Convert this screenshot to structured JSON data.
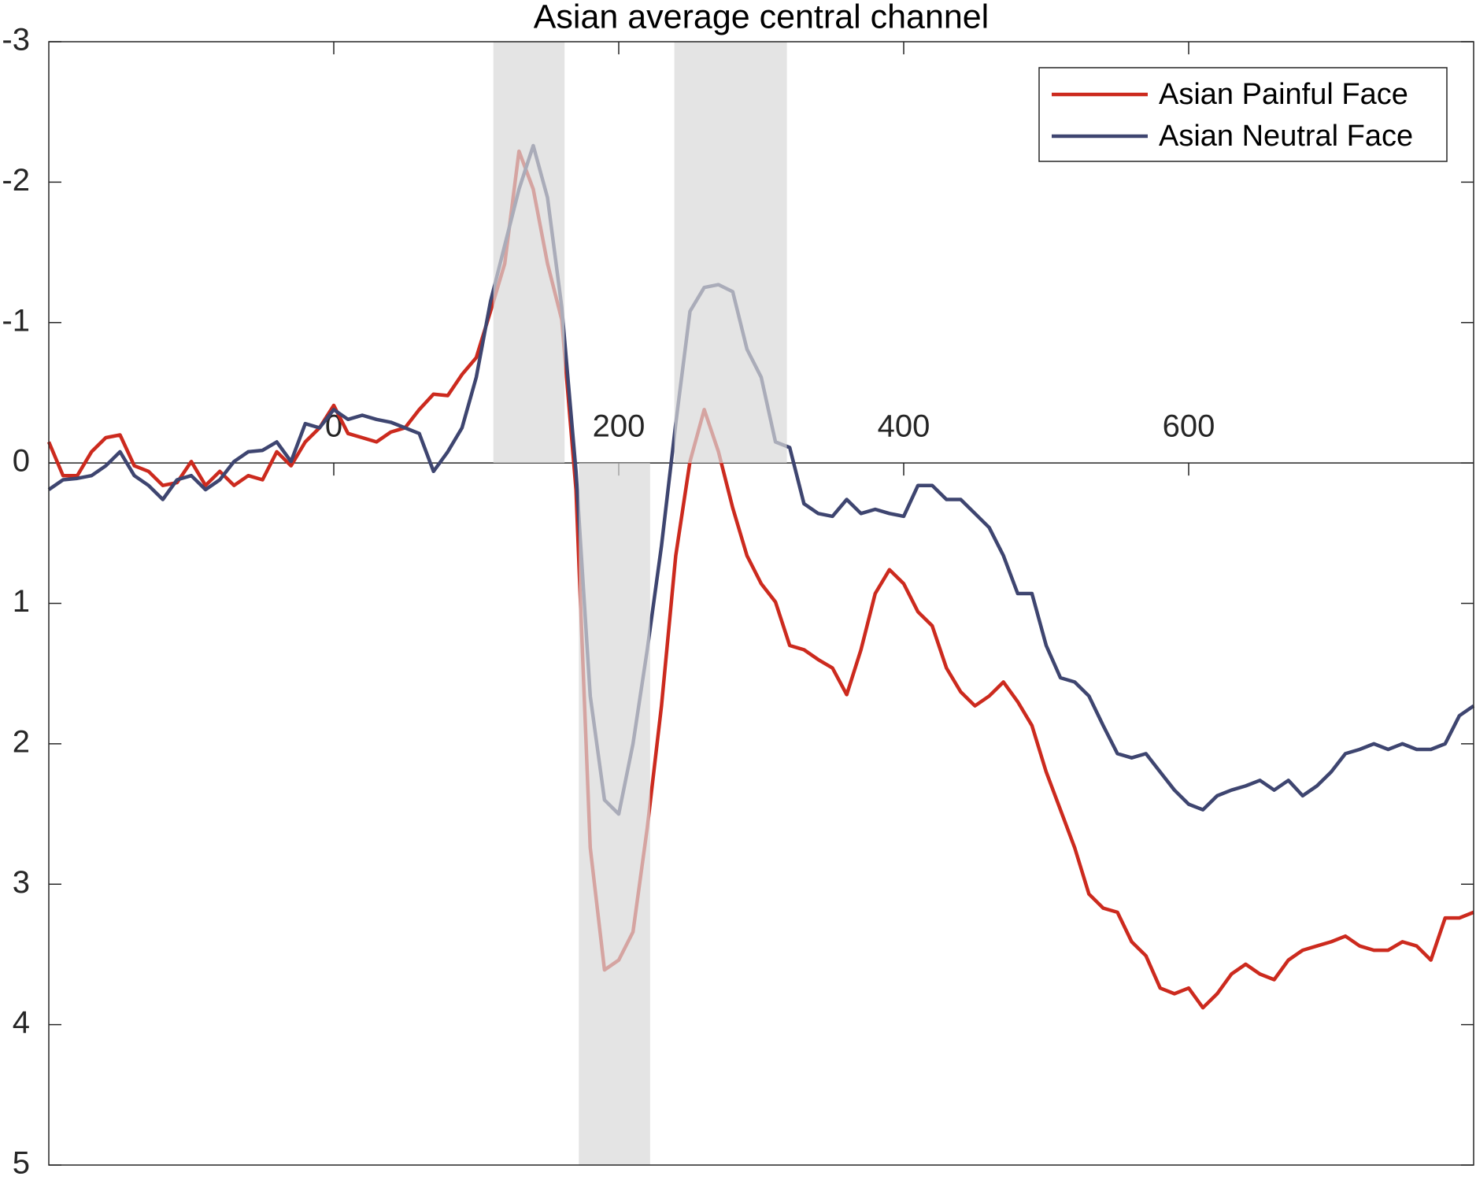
{
  "chart_data": {
    "type": "line",
    "title": "Asian average central channel",
    "x": [
      -200,
      -190,
      -180,
      -170,
      -160,
      -150,
      -140,
      -130,
      -120,
      -110,
      -100,
      -90,
      -80,
      -70,
      -60,
      -50,
      -40,
      -30,
      -20,
      -10,
      0,
      10,
      20,
      30,
      40,
      50,
      60,
      70,
      80,
      90,
      100,
      110,
      120,
      130,
      140,
      150,
      160,
      170,
      180,
      190,
      200,
      210,
      220,
      230,
      240,
      250,
      260,
      270,
      280,
      290,
      300,
      310,
      320,
      330,
      340,
      350,
      360,
      370,
      380,
      390,
      400,
      410,
      420,
      430,
      440,
      450,
      460,
      470,
      480,
      490,
      500,
      510,
      520,
      530,
      540,
      550,
      560,
      570,
      580,
      590,
      600,
      610,
      620,
      630,
      640,
      650,
      660,
      670,
      680,
      690,
      700,
      710,
      720,
      730,
      740,
      750,
      760,
      770,
      780,
      790,
      800
    ],
    "series": [
      {
        "name": "Asian Painful Face",
        "color": "#cc2a1e",
        "values": [
          -0.15,
          0.09,
          0.09,
          -0.08,
          -0.18,
          -0.2,
          0.02,
          0.06,
          0.16,
          0.14,
          -0.01,
          0.16,
          0.06,
          0.16,
          0.09,
          0.12,
          -0.08,
          0.02,
          -0.15,
          -0.25,
          -0.41,
          -0.21,
          -0.18,
          -0.15,
          -0.22,
          -0.25,
          -0.38,
          -0.49,
          -0.48,
          -0.63,
          -0.75,
          -1.08,
          -1.42,
          -2.22,
          -1.95,
          -1.42,
          -1.02,
          0.19,
          2.74,
          3.61,
          3.54,
          3.34,
          2.6,
          1.73,
          0.66,
          -0.01,
          -0.38,
          -0.08,
          0.32,
          0.66,
          0.86,
          0.99,
          1.3,
          1.33,
          1.4,
          1.46,
          1.65,
          1.33,
          0.93,
          0.76,
          0.86,
          1.06,
          1.16,
          1.46,
          1.63,
          1.73,
          1.66,
          1.56,
          1.7,
          1.87,
          2.2,
          2.47,
          2.74,
          3.07,
          3.17,
          3.2,
          3.41,
          3.51,
          3.74,
          3.78,
          3.74,
          3.88,
          3.78,
          3.64,
          3.57,
          3.64,
          3.68,
          3.54,
          3.47,
          3.44,
          3.41,
          3.37,
          3.44,
          3.47,
          3.47,
          3.41,
          3.44,
          3.54,
          3.24,
          3.24,
          3.2
        ]
      },
      {
        "name": "Asian Neutral Face",
        "color": "#3e4570",
        "values": [
          0.19,
          0.12,
          0.11,
          0.09,
          0.02,
          -0.08,
          0.09,
          0.16,
          0.26,
          0.12,
          0.09,
          0.19,
          0.12,
          -0.01,
          -0.08,
          -0.09,
          -0.15,
          -0.01,
          -0.28,
          -0.25,
          -0.38,
          -0.31,
          -0.34,
          -0.31,
          -0.29,
          -0.25,
          -0.21,
          0.06,
          -0.08,
          -0.25,
          -0.61,
          -1.15,
          -1.55,
          -1.95,
          -2.26,
          -1.89,
          -1.11,
          0.06,
          1.66,
          2.4,
          2.5,
          2.0,
          1.33,
          0.59,
          -0.28,
          -1.08,
          -1.25,
          -1.27,
          -1.22,
          -0.81,
          -0.61,
          -0.15,
          -0.11,
          0.29,
          0.36,
          0.38,
          0.26,
          0.36,
          0.33,
          0.36,
          0.38,
          0.16,
          0.16,
          0.26,
          0.26,
          0.36,
          0.46,
          0.66,
          0.93,
          0.93,
          1.3,
          1.53,
          1.56,
          1.66,
          1.87,
          2.07,
          2.1,
          2.07,
          2.2,
          2.33,
          2.43,
          2.47,
          2.37,
          2.33,
          2.3,
          2.26,
          2.33,
          2.26,
          2.37,
          2.3,
          2.2,
          2.07,
          2.04,
          2.0,
          2.04,
          2.0,
          2.04,
          2.04,
          2.0,
          1.8,
          1.73
        ]
      }
    ],
    "shaded": [
      {
        "x": [
          112,
          162
        ],
        "y": [
          -3,
          0
        ]
      },
      {
        "x": [
          172,
          222
        ],
        "y": [
          0,
          5
        ]
      },
      {
        "x": [
          239,
          318
        ],
        "y": [
          -3,
          0
        ]
      }
    ],
    "xlim": [
      -200,
      800
    ],
    "xticks": [
      0,
      200,
      400,
      600
    ],
    "ylim": [
      -3,
      5
    ],
    "yticks": [
      -3,
      -2,
      -1,
      0,
      1,
      2,
      3,
      4,
      5
    ],
    "ydir": "reverse",
    "legend": "northeast"
  }
}
